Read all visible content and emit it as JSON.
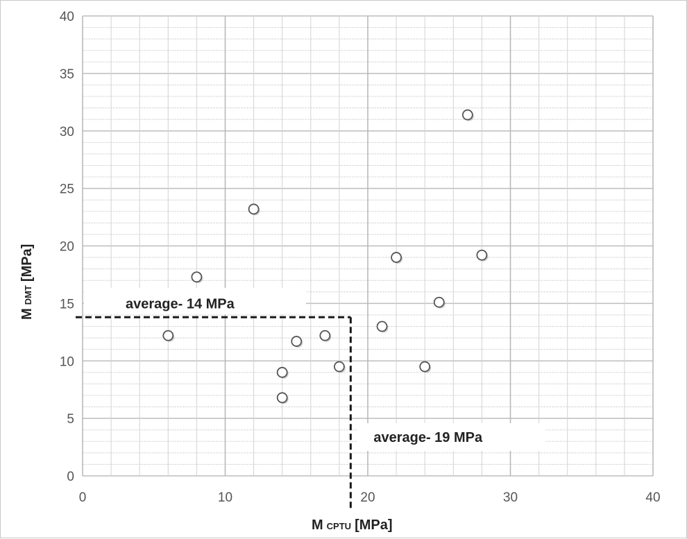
{
  "chart_data": {
    "type": "scatter",
    "xlabel": {
      "main": "M",
      "sub": "CPTU",
      "unit": "[MPa]"
    },
    "ylabel": {
      "main": "M",
      "sub": "DMT",
      "unit": "[MPa]"
    },
    "xlim": [
      0,
      40
    ],
    "ylim": [
      0,
      40
    ],
    "x_ticks": [
      "0",
      "10",
      "20",
      "30",
      "40"
    ],
    "y_ticks": [
      "0",
      "5",
      "10",
      "15",
      "20",
      "25",
      "30",
      "35",
      "40"
    ],
    "grid": true,
    "points": [
      {
        "x": 6,
        "y": 12.2
      },
      {
        "x": 8,
        "y": 17.3
      },
      {
        "x": 12,
        "y": 23.2
      },
      {
        "x": 14,
        "y": 9.0
      },
      {
        "x": 14,
        "y": 6.8
      },
      {
        "x": 15,
        "y": 11.7
      },
      {
        "x": 17,
        "y": 12.2
      },
      {
        "x": 18,
        "y": 9.5
      },
      {
        "x": 21,
        "y": 13.0
      },
      {
        "x": 22,
        "y": 19.0
      },
      {
        "x": 24,
        "y": 9.5
      },
      {
        "x": 25,
        "y": 15.1
      },
      {
        "x": 27,
        "y": 31.4
      },
      {
        "x": 28,
        "y": 19.2
      }
    ],
    "annotations": [
      {
        "text": "average- 14 MPa",
        "axis": "y",
        "value": 13.8
      },
      {
        "text": "average- 19 MPa",
        "axis": "x",
        "value": 18.8
      }
    ],
    "colors": {
      "marker_fill": "#ffffff",
      "marker_stroke": "#555555",
      "grid": "#c8c8c8",
      "average_line": "#1a1a1a"
    }
  }
}
